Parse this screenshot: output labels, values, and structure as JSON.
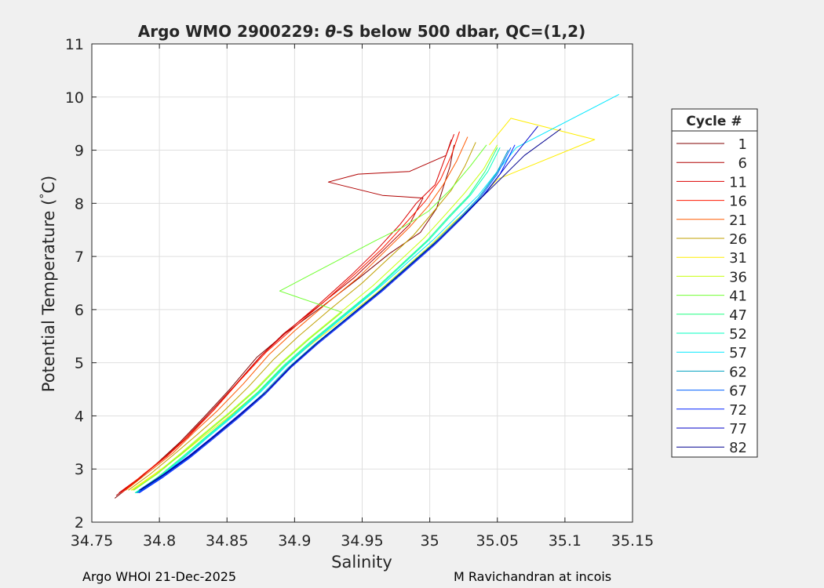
{
  "chart_data": {
    "type": "line",
    "title_parts": {
      "prefix": "Argo WMO 2900229: ",
      "symbol": "θ",
      "suffix": "-S below 500 dbar,  QC=(1,2)"
    },
    "xlabel": "Salinity",
    "ylabel_parts": {
      "prefix": "Potential Temperature (",
      "degree": "°",
      "suffix": "C)"
    },
    "xlim": [
      34.75,
      35.15
    ],
    "ylim": [
      2,
      11
    ],
    "xticks": [
      34.75,
      34.8,
      34.85,
      34.9,
      34.95,
      35,
      35.05,
      35.1,
      35.15
    ],
    "xtick_labels": [
      "34.75",
      "34.8",
      "34.85",
      "34.9",
      "34.95",
      "35",
      "35.05",
      "35.1",
      "35.15"
    ],
    "yticks": [
      2,
      3,
      4,
      5,
      6,
      7,
      8,
      9,
      10,
      11
    ],
    "ytick_labels": [
      "2",
      "3",
      "4",
      "5",
      "6",
      "7",
      "8",
      "9",
      "10",
      "11"
    ],
    "grid": true,
    "legend": {
      "title": "Cycle #",
      "placement": "right",
      "entries": [
        {
          "label": "1",
          "color": "#800000"
        },
        {
          "label": "6",
          "color": "#b00000"
        },
        {
          "label": "11",
          "color": "#dc0000"
        },
        {
          "label": "16",
          "color": "#ff1a00"
        },
        {
          "label": "21",
          "color": "#ff5a00"
        },
        {
          "label": "26",
          "color": "#c0a000"
        },
        {
          "label": "31",
          "color": "#ffee00"
        },
        {
          "label": "36",
          "color": "#c8ff10"
        },
        {
          "label": "41",
          "color": "#70ff30"
        },
        {
          "label": "47",
          "color": "#20ff80"
        },
        {
          "label": "52",
          "color": "#00ffc0"
        },
        {
          "label": "57",
          "color": "#00e8ff"
        },
        {
          "label": "62",
          "color": "#00a0c0"
        },
        {
          "label": "67",
          "color": "#0060ff"
        },
        {
          "label": "72",
          "color": "#0020ff"
        },
        {
          "label": "77",
          "color": "#0000c8"
        },
        {
          "label": "82",
          "color": "#00008f"
        }
      ]
    },
    "series": [
      {
        "name": "1",
        "color": "#800000",
        "x": [
          34.767,
          34.782,
          34.8,
          34.815,
          34.832,
          34.852,
          34.872,
          34.893,
          34.92,
          34.948,
          34.97,
          34.993,
          35.005,
          35.01,
          35.015,
          35.018
        ],
        "y": [
          2.45,
          2.75,
          3.15,
          3.5,
          3.95,
          4.5,
          5.1,
          5.55,
          6.05,
          6.6,
          7.05,
          7.45,
          7.9,
          8.3,
          8.7,
          9.1
        ]
      },
      {
        "name": "6",
        "color": "#b00000",
        "x": [
          34.768,
          34.784,
          34.803,
          34.818,
          34.835,
          34.855,
          34.874,
          34.892,
          34.917,
          34.944,
          34.965,
          34.985,
          34.995,
          34.965,
          34.925,
          34.947,
          34.985,
          35.012,
          35.016
        ],
        "y": [
          2.5,
          2.8,
          3.2,
          3.55,
          4.0,
          4.55,
          5.1,
          5.55,
          6.05,
          6.6,
          7.1,
          7.6,
          8.1,
          8.15,
          8.4,
          8.55,
          8.6,
          8.9,
          9.2
        ]
      },
      {
        "name": "11",
        "color": "#dc0000",
        "x": [
          34.77,
          34.786,
          34.806,
          34.821,
          34.838,
          34.857,
          34.876,
          34.895,
          34.918,
          34.942,
          34.96,
          34.978,
          34.99,
          35.004,
          35.012,
          35.018
        ],
        "y": [
          2.55,
          2.85,
          3.25,
          3.6,
          4.05,
          4.6,
          5.15,
          5.6,
          6.1,
          6.65,
          7.1,
          7.6,
          8.0,
          8.35,
          8.9,
          9.3
        ]
      },
      {
        "name": "16",
        "color": "#ff1a00",
        "x": [
          34.772,
          34.788,
          34.808,
          34.824,
          34.84,
          34.859,
          34.879,
          34.899,
          34.922,
          34.946,
          34.965,
          34.983,
          34.997,
          35.008,
          35.016,
          35.022
        ],
        "y": [
          2.55,
          2.9,
          3.3,
          3.7,
          4.1,
          4.65,
          5.2,
          5.65,
          6.15,
          6.7,
          7.15,
          7.65,
          8.05,
          8.45,
          8.9,
          9.35
        ]
      },
      {
        "name": "21",
        "color": "#ff5a00",
        "x": [
          34.775,
          34.79,
          34.81,
          34.826,
          34.843,
          34.862,
          34.881,
          34.9,
          34.923,
          34.947,
          34.967,
          34.985,
          34.999,
          35.01,
          35.02,
          35.028
        ],
        "y": [
          2.6,
          2.9,
          3.3,
          3.7,
          4.1,
          4.6,
          5.15,
          5.6,
          6.1,
          6.6,
          7.1,
          7.55,
          7.95,
          8.35,
          8.8,
          9.25
        ]
      },
      {
        "name": "26",
        "color": "#c0a000",
        "x": [
          34.777,
          34.793,
          34.812,
          34.828,
          34.846,
          34.866,
          34.884,
          34.903,
          34.926,
          34.95,
          34.969,
          34.988,
          35.003,
          35.016,
          35.026,
          35.034
        ],
        "y": [
          2.6,
          2.9,
          3.3,
          3.65,
          4.05,
          4.55,
          5.05,
          5.5,
          6.0,
          6.5,
          6.95,
          7.4,
          7.85,
          8.25,
          8.7,
          9.15
        ]
      },
      {
        "name": "31",
        "color": "#ffee00",
        "x": [
          34.779,
          34.796,
          34.815,
          34.832,
          34.852,
          34.873,
          34.891,
          34.91,
          34.935,
          34.96,
          34.98,
          35.0,
          35.018,
          35.036,
          35.05,
          35.122,
          35.06,
          35.044
        ],
        "y": [
          2.6,
          2.9,
          3.25,
          3.6,
          4.0,
          4.45,
          4.9,
          5.3,
          5.8,
          6.3,
          6.75,
          7.2,
          7.65,
          8.05,
          8.45,
          9.2,
          9.6,
          9.1
        ]
      },
      {
        "name": "36",
        "color": "#c8ff10",
        "x": [
          34.78,
          34.797,
          34.816,
          34.832,
          34.851,
          34.871,
          34.89,
          34.91,
          34.934,
          34.958,
          34.977,
          34.996,
          35.012,
          35.026,
          35.04,
          35.05
        ],
        "y": [
          2.6,
          2.9,
          3.3,
          3.65,
          4.05,
          4.5,
          5.0,
          5.45,
          5.95,
          6.45,
          6.9,
          7.35,
          7.8,
          8.2,
          8.65,
          9.1
        ]
      },
      {
        "name": "41",
        "color": "#70ff30",
        "x": [
          34.781,
          34.798,
          34.817,
          34.833,
          34.852,
          34.872,
          34.891,
          34.911,
          34.935,
          34.889,
          34.93,
          34.96,
          34.98,
          34.999,
          35.015,
          35.03,
          35.042
        ],
        "y": [
          2.6,
          2.9,
          3.3,
          3.65,
          4.05,
          4.5,
          5.0,
          5.45,
          5.95,
          6.35,
          6.9,
          7.3,
          7.55,
          7.85,
          8.25,
          8.7,
          9.1
        ]
      },
      {
        "name": "47",
        "color": "#20ff80",
        "x": [
          34.782,
          34.799,
          34.818,
          34.834,
          34.853,
          34.873,
          34.892,
          34.912,
          34.936,
          34.96,
          34.979,
          34.998,
          35.014,
          35.029,
          35.041,
          35.05
        ],
        "y": [
          2.55,
          2.85,
          3.25,
          3.6,
          4.0,
          4.45,
          4.95,
          5.4,
          5.9,
          6.4,
          6.85,
          7.3,
          7.75,
          8.15,
          8.6,
          9.05
        ]
      },
      {
        "name": "52",
        "color": "#00ffc0",
        "x": [
          34.782,
          34.8,
          34.819,
          34.835,
          34.854,
          34.874,
          34.893,
          34.913,
          34.937,
          34.961,
          34.98,
          34.999,
          35.015,
          35.03,
          35.043,
          35.052
        ],
        "y": [
          2.55,
          2.85,
          3.25,
          3.6,
          4.0,
          4.45,
          4.95,
          5.4,
          5.9,
          6.4,
          6.85,
          7.3,
          7.75,
          8.15,
          8.6,
          9.05
        ]
      },
      {
        "name": "57",
        "color": "#00e8ff",
        "x": [
          34.783,
          34.801,
          34.82,
          34.836,
          34.855,
          34.875,
          34.894,
          34.914,
          34.938,
          34.962,
          34.982,
          35.002,
          35.02,
          35.036,
          35.05,
          35.064,
          35.14
        ],
        "y": [
          2.55,
          2.85,
          3.25,
          3.6,
          4.0,
          4.45,
          4.95,
          5.4,
          5.9,
          6.4,
          6.85,
          7.3,
          7.75,
          8.15,
          8.6,
          9.05,
          10.05
        ]
      },
      {
        "name": "62",
        "color": "#00a0c0",
        "x": [
          34.783,
          34.801,
          34.82,
          34.837,
          34.856,
          34.876,
          34.895,
          34.915,
          34.939,
          34.963,
          34.983,
          35.003,
          35.021,
          35.036,
          35.049,
          35.058
        ],
        "y": [
          2.55,
          2.85,
          3.2,
          3.55,
          3.95,
          4.4,
          4.9,
          5.35,
          5.85,
          6.35,
          6.8,
          7.25,
          7.7,
          8.1,
          8.55,
          9.0
        ]
      },
      {
        "name": "67",
        "color": "#0060ff",
        "x": [
          34.784,
          34.802,
          34.821,
          34.838,
          34.857,
          34.877,
          34.896,
          34.916,
          34.94,
          34.964,
          34.984,
          35.004,
          35.022,
          35.037,
          35.05,
          35.06
        ],
        "y": [
          2.55,
          2.85,
          3.2,
          3.55,
          3.95,
          4.4,
          4.9,
          5.35,
          5.85,
          6.35,
          6.8,
          7.25,
          7.7,
          8.1,
          8.55,
          9.05
        ]
      },
      {
        "name": "72",
        "color": "#0020ff",
        "x": [
          34.785,
          34.803,
          34.822,
          34.839,
          34.858,
          34.878,
          34.897,
          34.917,
          34.941,
          34.965,
          34.985,
          35.005,
          35.023,
          35.038,
          35.052,
          35.063
        ],
        "y": [
          2.55,
          2.85,
          3.2,
          3.55,
          3.95,
          4.4,
          4.9,
          5.35,
          5.85,
          6.35,
          6.8,
          7.25,
          7.7,
          8.1,
          8.55,
          9.1
        ]
      },
      {
        "name": "77",
        "color": "#0000c8",
        "x": [
          34.785,
          34.803,
          34.822,
          34.839,
          34.858,
          34.879,
          34.898,
          34.918,
          34.942,
          34.966,
          34.986,
          35.006,
          35.024,
          35.04,
          35.058,
          35.08
        ],
        "y": [
          2.6,
          2.9,
          3.25,
          3.6,
          4.0,
          4.45,
          4.95,
          5.4,
          5.9,
          6.4,
          6.85,
          7.3,
          7.75,
          8.15,
          8.75,
          9.45
        ]
      },
      {
        "name": "82",
        "color": "#00008f",
        "x": [
          34.786,
          34.804,
          34.823,
          34.84,
          34.859,
          34.879,
          34.898,
          34.918,
          34.942,
          34.966,
          34.986,
          35.006,
          35.024,
          35.042,
          35.07,
          35.097
        ],
        "y": [
          2.6,
          2.9,
          3.25,
          3.6,
          4.0,
          4.45,
          4.95,
          5.4,
          5.9,
          6.4,
          6.85,
          7.3,
          7.75,
          8.2,
          8.9,
          9.4
        ]
      }
    ]
  },
  "footer": {
    "left": "Argo WHOI 21-Dec-2025",
    "right": "M Ravichandran at incois"
  }
}
